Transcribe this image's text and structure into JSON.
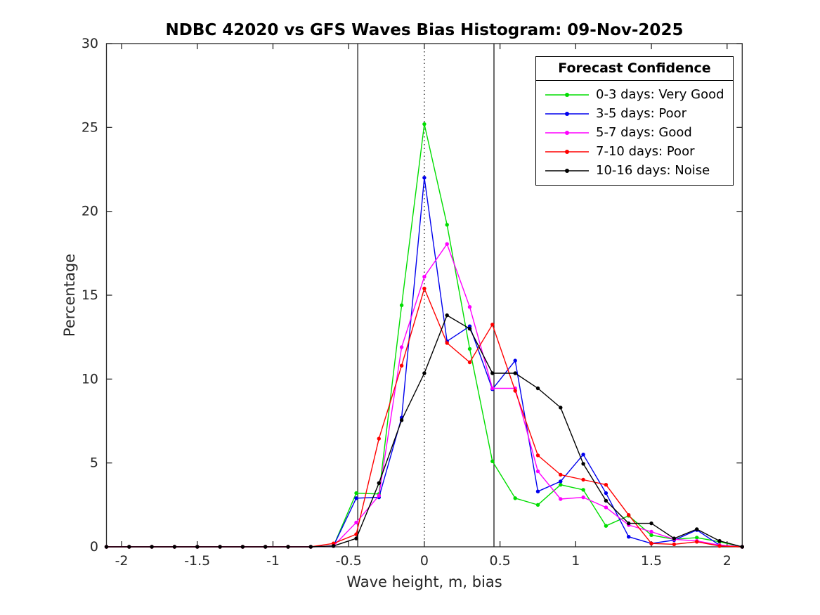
{
  "figure": {
    "background": "#ffffff"
  },
  "chart_data": {
    "type": "line",
    "title": "NDBC 42020 vs GFS Waves Bias Histogram: 09-Nov-2025",
    "xlabel": "Wave height, m, bias",
    "ylabel": "Percentage",
    "xlim": [
      -2.1,
      2.1
    ],
    "ylim": [
      0,
      30
    ],
    "xticks": [
      -2,
      -1.5,
      -1,
      -0.5,
      0,
      0.5,
      1,
      1.5,
      2
    ],
    "xtick_labels": [
      "-2",
      "-1.5",
      "-1",
      "-0.5",
      "0",
      "0.5",
      "1",
      "1.5",
      "2"
    ],
    "yticks": [
      0,
      5,
      10,
      15,
      20,
      25,
      30
    ],
    "ytick_labels": [
      "0",
      "5",
      "10",
      "15",
      "20",
      "25",
      "30"
    ],
    "grid": false,
    "box": true,
    "reference_lines": {
      "solid_vertical": [
        -0.44,
        0.46
      ],
      "dotted_vertical": [
        0
      ]
    },
    "x": [
      -2.1,
      -1.95,
      -1.8,
      -1.65,
      -1.5,
      -1.35,
      -1.2,
      -1.05,
      -0.9,
      -0.75,
      -0.6,
      -0.45,
      -0.3,
      -0.15,
      0,
      0.15,
      0.3,
      0.45,
      0.6,
      0.75,
      0.9,
      1.05,
      1.2,
      1.35,
      1.5,
      1.65,
      1.8,
      1.95,
      2.1
    ],
    "series": [
      {
        "name": "0-3 days: Very Good",
        "color": "#00dd00",
        "values": [
          0,
          0,
          0,
          0,
          0,
          0,
          0,
          0,
          0,
          0,
          0.05,
          3.2,
          3.15,
          14.4,
          25.2,
          19.2,
          11.8,
          5.1,
          2.9,
          2.5,
          3.7,
          3.4,
          1.25,
          1.85,
          0.7,
          0.45,
          0.55,
          0.3,
          0
        ]
      },
      {
        "name": "3-5 days: Poor",
        "color": "#0000ee",
        "values": [
          0,
          0,
          0,
          0,
          0,
          0,
          0,
          0,
          0,
          0,
          0.05,
          2.9,
          2.95,
          7.7,
          22,
          12.25,
          13.15,
          9.4,
          11.1,
          3.3,
          3.9,
          5.5,
          3.2,
          0.6,
          0.2,
          0.4,
          1,
          0.1,
          0
        ]
      },
      {
        "name": "5-7 days: Good",
        "color": "#ff00ff",
        "values": [
          0,
          0,
          0,
          0,
          0,
          0,
          0,
          0,
          0,
          0,
          0.05,
          1.45,
          3.05,
          11.9,
          16.1,
          18.05,
          14.3,
          9.45,
          9.45,
          4.5,
          2.85,
          2.95,
          2.35,
          1.3,
          0.9,
          0.45,
          0.35,
          0.1,
          0
        ]
      },
      {
        "name": "7-10 days: Poor",
        "color": "#ff0000",
        "values": [
          0,
          0,
          0,
          0,
          0,
          0,
          0,
          0,
          0,
          0,
          0.2,
          0.75,
          6.45,
          10.8,
          15.4,
          12.15,
          11,
          13.25,
          9.3,
          5.45,
          4.3,
          4,
          3.7,
          1.9,
          0.2,
          0.15,
          0.3,
          0.05,
          0
        ]
      },
      {
        "name": "10-16 days: Noise",
        "color": "#000000",
        "values": [
          0,
          0,
          0,
          0,
          0,
          0,
          0,
          0,
          0,
          0,
          0.05,
          0.5,
          3.8,
          7.55,
          10.35,
          13.8,
          13,
          10.35,
          10.35,
          9.45,
          8.3,
          4.95,
          2.75,
          1.4,
          1.4,
          0.5,
          1.05,
          0.35,
          0
        ]
      }
    ],
    "legend": {
      "title": "Forecast Confidence",
      "position": "top-right"
    }
  }
}
